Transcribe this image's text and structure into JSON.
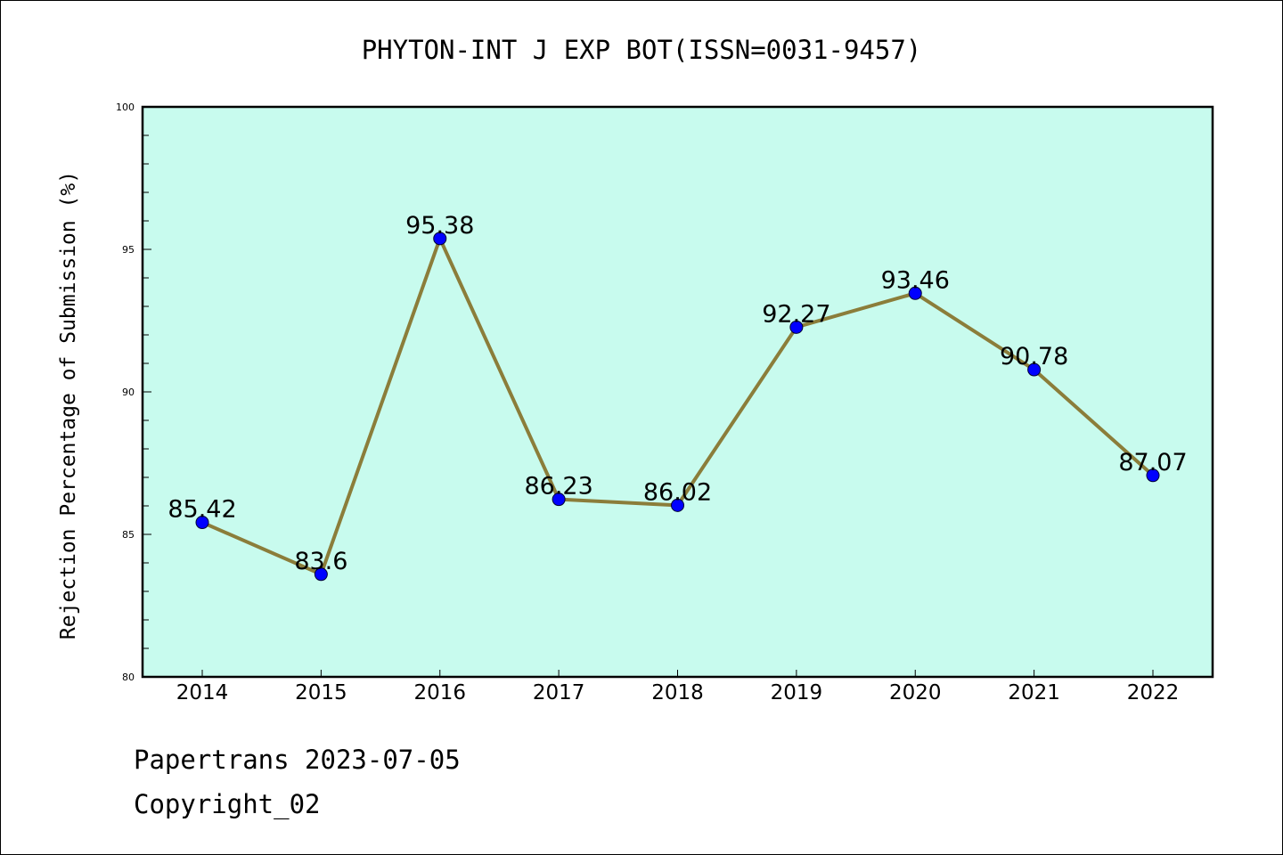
{
  "chart_data": {
    "type": "line",
    "title": "PHYTON-INT J EXP BOT(ISSN=0031-9457)",
    "xlabel": "",
    "ylabel": "Rejection Percentage of Submission (%)",
    "categories": [
      "2014",
      "2015",
      "2016",
      "2017",
      "2018",
      "2019",
      "2020",
      "2021",
      "2022"
    ],
    "series": [
      {
        "values": [
          85.42,
          83.6,
          95.38,
          86.23,
          86.02,
          92.27,
          93.46,
          90.78,
          87.07
        ]
      }
    ],
    "data_labels": [
      "85.42",
      "83.6",
      "95.38",
      "86.23",
      "86.02",
      "92.27",
      "93.46",
      "90.78",
      "87.07"
    ],
    "ylim": [
      80,
      100
    ],
    "yticks": [
      80,
      85,
      90,
      95,
      100
    ],
    "grid": false,
    "colors": {
      "plot_background": "#c8fbee",
      "line": "#8b7d3a",
      "marker": "#0000ff"
    }
  },
  "footer": {
    "line1": "Papertrans 2023-07-05",
    "line2": "Copyright_02"
  }
}
